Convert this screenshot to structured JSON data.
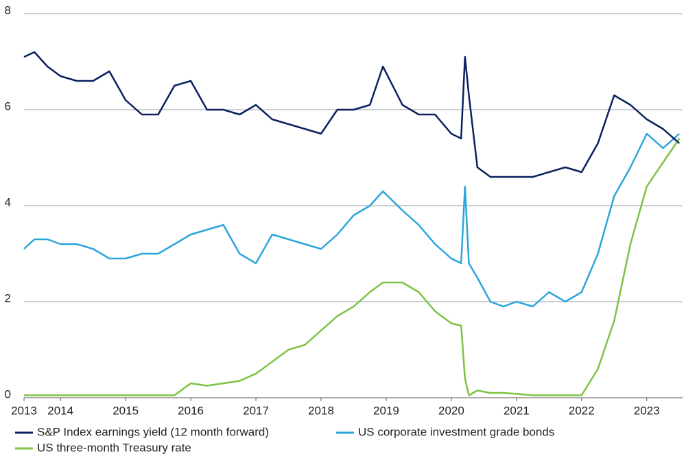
{
  "chart_data": {
    "type": "line",
    "x": [
      2013.44,
      2013.6,
      2013.8,
      2014.0,
      2014.25,
      2014.5,
      2014.75,
      2015.0,
      2015.25,
      2015.5,
      2015.75,
      2016.0,
      2016.25,
      2016.5,
      2016.75,
      2017.0,
      2017.25,
      2017.5,
      2017.75,
      2018.0,
      2018.25,
      2018.5,
      2018.75,
      2018.95,
      2019.25,
      2019.5,
      2019.75,
      2020.0,
      2020.15,
      2020.21,
      2020.27,
      2020.4,
      2020.6,
      2020.8,
      2021.0,
      2021.25,
      2021.5,
      2021.75,
      2022.0,
      2022.25,
      2022.5,
      2022.75,
      2023.0,
      2023.25,
      2023.5
    ],
    "series": [
      {
        "name": "S&P Index earnings yield (12 month forward)",
        "color": "#0b1f5e",
        "values": [
          7.1,
          7.2,
          6.9,
          6.7,
          6.6,
          6.6,
          6.8,
          6.2,
          5.9,
          5.9,
          6.5,
          6.6,
          6.0,
          6.0,
          5.9,
          6.1,
          5.8,
          5.7,
          5.6,
          5.5,
          6.0,
          6.0,
          6.1,
          6.9,
          6.1,
          5.9,
          5.9,
          5.5,
          5.4,
          7.1,
          6.3,
          4.8,
          4.6,
          4.6,
          4.6,
          4.6,
          4.7,
          4.8,
          4.7,
          5.3,
          6.3,
          6.1,
          5.8,
          5.6,
          5.3
        ]
      },
      {
        "name": "US corporate investment grade bonds",
        "color": "#2aa5dc",
        "values": [
          3.1,
          3.3,
          3.3,
          3.2,
          3.2,
          3.1,
          2.9,
          2.9,
          3.0,
          3.0,
          3.2,
          3.4,
          3.5,
          3.6,
          3.0,
          2.8,
          3.4,
          3.3,
          3.2,
          3.1,
          3.4,
          3.8,
          4.0,
          4.3,
          3.9,
          3.6,
          3.2,
          2.9,
          2.8,
          4.4,
          2.8,
          2.5,
          2.0,
          1.9,
          2.0,
          1.9,
          2.2,
          2.0,
          2.2,
          3.0,
          4.2,
          4.8,
          5.5,
          5.2,
          5.5
        ]
      },
      {
        "name": "US three-month Treasury rate",
        "color": "#7dc242",
        "values": [
          0.05,
          0.05,
          0.05,
          0.05,
          0.05,
          0.05,
          0.05,
          0.05,
          0.05,
          0.05,
          0.05,
          0.3,
          0.25,
          0.3,
          0.35,
          0.5,
          0.75,
          1.0,
          1.1,
          1.4,
          1.7,
          1.9,
          2.2,
          2.4,
          2.4,
          2.2,
          1.8,
          1.55,
          1.5,
          0.4,
          0.05,
          0.15,
          0.1,
          0.1,
          0.08,
          0.05,
          0.05,
          0.05,
          0.05,
          0.6,
          1.6,
          3.2,
          4.4,
          4.9,
          5.4
        ]
      }
    ],
    "xlim": [
      2013.44,
      2023.55
    ],
    "xticks": [
      {
        "value": 2013.44,
        "label": "2013"
      },
      2014,
      2015,
      2016,
      2017,
      2018,
      2019,
      2020,
      2021,
      2022,
      2023
    ],
    "ylim": [
      0,
      8
    ],
    "yticks": [
      0,
      2,
      4,
      6,
      8
    ],
    "grid": true
  }
}
